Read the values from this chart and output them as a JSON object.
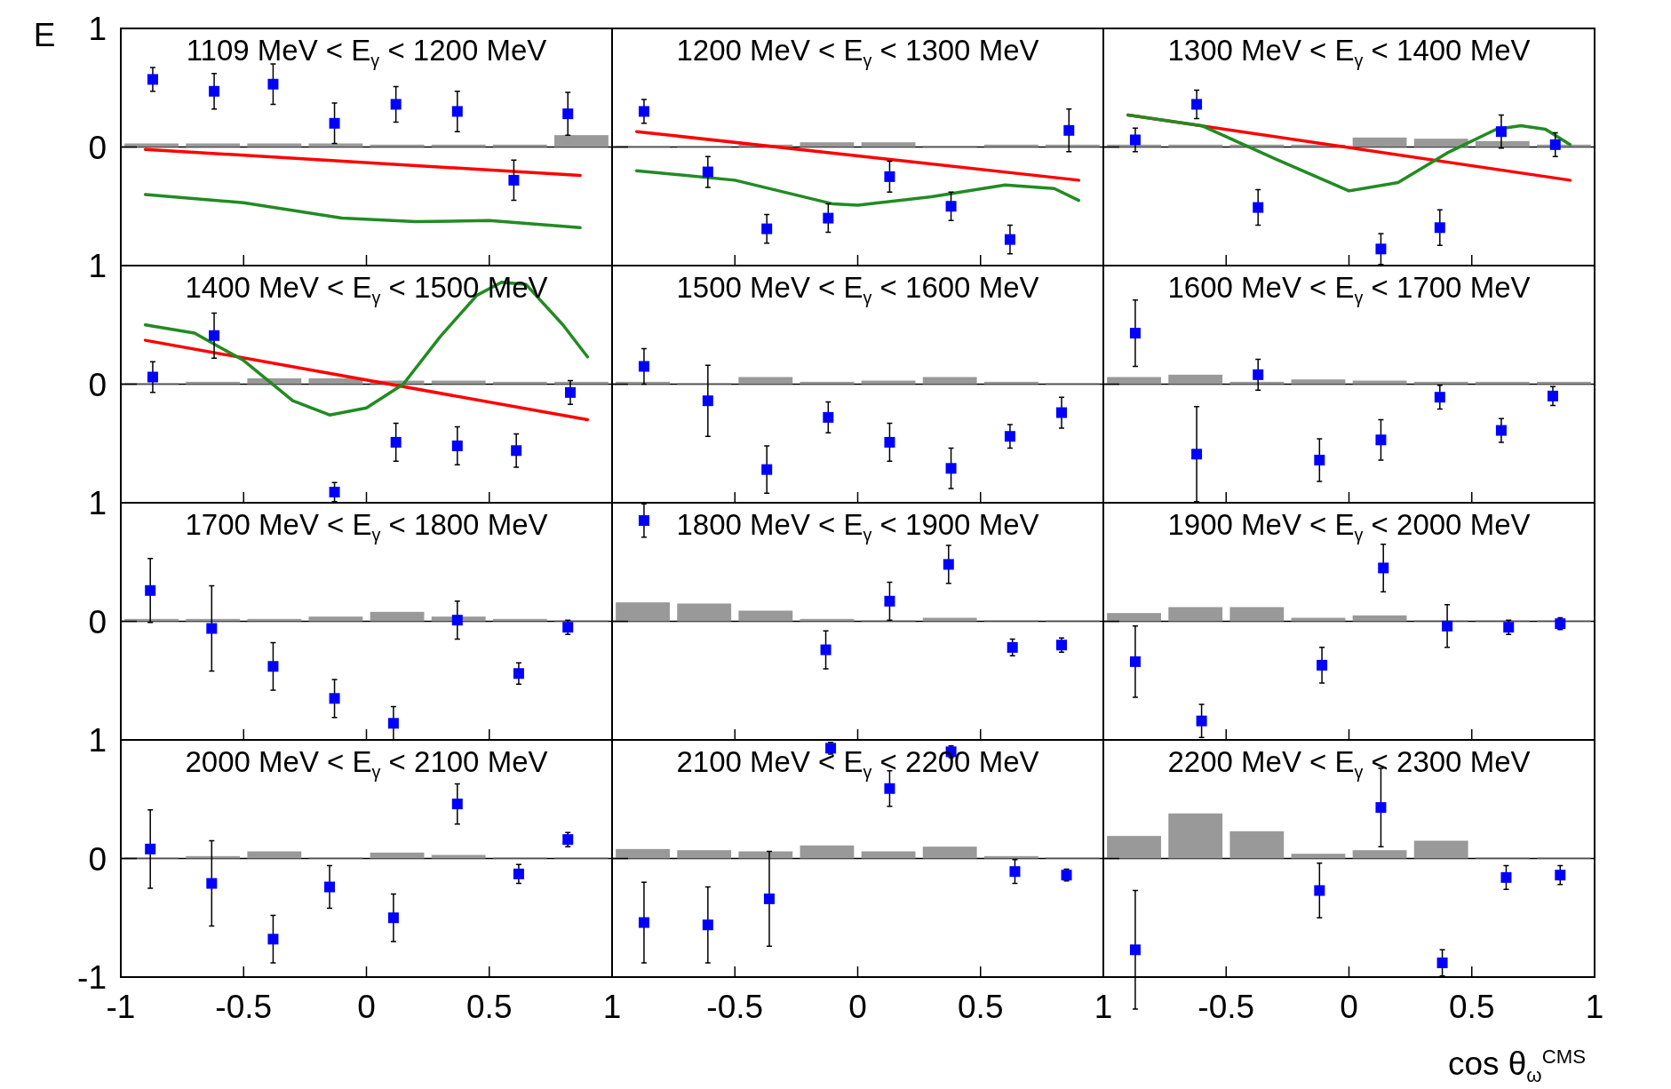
{
  "chart_data": [
    {
      "type": "scatter",
      "title": "1109 MeV < E$_{γ}$ < 1200 MeV",
      "ylabel": "E",
      "xlim": [
        -1,
        1
      ],
      "xticks": [
        -0.5,
        0,
        0.5
      ],
      "ylim": [
        -1,
        1
      ],
      "yticks": [
        0,
        1
      ],
      "tick_labels": "y",
      "ref_lines": [
        {
          "axis": "y",
          "value": 0,
          "color": "#000000"
        }
      ],
      "series": [
        {
          "type": "bar",
          "color": "#999999",
          "x": [
            -0.875,
            -0.625,
            -0.375,
            -0.125,
            0.125,
            0.375,
            0.625,
            0.875
          ],
          "values": [
            0.03,
            0.03,
            0.03,
            0.03,
            0.02,
            0.02,
            0.02,
            0.1
          ]
        },
        {
          "type": "line",
          "color": "#ff0000",
          "x": [
            -0.9,
            0.87
          ],
          "values": [
            -0.02,
            -0.24
          ]
        },
        {
          "type": "line",
          "color": "#228b22",
          "x": [
            -0.9,
            -0.5,
            -0.1,
            0.2,
            0.5,
            0.87
          ],
          "values": [
            -0.4,
            -0.47,
            -0.6,
            -0.63,
            -0.62,
            -0.68
          ]
        },
        {
          "type": "scatter",
          "color": "#0000ff",
          "marker": "square",
          "x": [
            -0.87,
            -0.62,
            -0.38,
            -0.13,
            0.12,
            0.37,
            0.6,
            0.82
          ],
          "values": [
            0.57,
            0.47,
            0.53,
            0.2,
            0.36,
            0.3,
            -0.28,
            0.28
          ],
          "errors": [
            0.1,
            0.15,
            0.17,
            0.17,
            0.15,
            0.17,
            0.17,
            0.18
          ]
        }
      ]
    },
    {
      "type": "scatter",
      "title": "1200 MeV < E$_{γ}$ < 1300 MeV",
      "xlim": [
        -1,
        1
      ],
      "xticks": [
        -0.5,
        0,
        0.5
      ],
      "ylim": [
        -1,
        1
      ],
      "yticks": [
        0
      ],
      "tick_labels": false,
      "ref_lines": [
        {
          "axis": "y",
          "value": 0,
          "color": "#000000"
        }
      ],
      "series": [
        {
          "type": "bar",
          "color": "#999999",
          "x": [
            -0.875,
            -0.625,
            -0.375,
            -0.125,
            0.125,
            0.375,
            0.625,
            0.875
          ],
          "values": [
            0.01,
            0.01,
            0.02,
            0.04,
            0.04,
            0.01,
            0.02,
            0.02
          ]
        },
        {
          "type": "line",
          "color": "#ff0000",
          "x": [
            -0.9,
            0.9
          ],
          "values": [
            0.13,
            -0.28
          ]
        },
        {
          "type": "line",
          "color": "#228b22",
          "x": [
            -0.9,
            -0.5,
            -0.1,
            0,
            0.3,
            0.6,
            0.8,
            0.9
          ],
          "values": [
            -0.2,
            -0.28,
            -0.48,
            -0.49,
            -0.42,
            -0.32,
            -0.35,
            -0.45
          ]
        },
        {
          "type": "scatter",
          "color": "#0000ff",
          "marker": "square",
          "x": [
            -0.87,
            -0.61,
            -0.37,
            -0.12,
            0.13,
            0.38,
            0.62,
            0.86
          ],
          "values": [
            0.3,
            -0.21,
            -0.69,
            -0.6,
            -0.25,
            -0.5,
            -0.78,
            0.14
          ],
          "errors": [
            0.1,
            0.13,
            0.12,
            0.12,
            0.13,
            0.12,
            0.12,
            0.18
          ]
        }
      ]
    },
    {
      "type": "scatter",
      "title": "1300 MeV < E$_{γ}$ < 1400 MeV",
      "xlim": [
        -1,
        1
      ],
      "xticks": [
        -0.5,
        0,
        0.5
      ],
      "ylim": [
        -1,
        1
      ],
      "yticks": [
        0
      ],
      "tick_labels": false,
      "ref_lines": [
        {
          "axis": "y",
          "value": 0,
          "color": "#000000"
        }
      ],
      "series": [
        {
          "type": "bar",
          "color": "#999999",
          "x": [
            -0.875,
            -0.625,
            -0.375,
            -0.125,
            0.125,
            0.375,
            0.625,
            0.875
          ],
          "values": [
            0.02,
            0.02,
            0.02,
            0.02,
            0.08,
            0.07,
            0.05,
            0.02
          ]
        },
        {
          "type": "line",
          "color": "#ff0000",
          "x": [
            -0.9,
            0.9
          ],
          "values": [
            0.27,
            -0.28
          ]
        },
        {
          "type": "line",
          "color": "#228b22",
          "x": [
            -0.9,
            -0.6,
            -0.3,
            0,
            0.2,
            0.4,
            0.6,
            0.7,
            0.8,
            0.9
          ],
          "values": [
            0.27,
            0.18,
            -0.1,
            -0.37,
            -0.3,
            -0.05,
            0.15,
            0.18,
            0.15,
            0.02
          ]
        },
        {
          "type": "scatter",
          "color": "#0000ff",
          "marker": "square",
          "x": [
            -0.87,
            -0.62,
            -0.37,
            0.13,
            0.37,
            0.62,
            0.84
          ],
          "values": [
            0.06,
            0.36,
            -0.51,
            -0.86,
            -0.68,
            0.13,
            0.02
          ],
          "errors": [
            0.1,
            0.12,
            0.15,
            0.13,
            0.15,
            0.14,
            0.1
          ]
        }
      ]
    },
    {
      "type": "scatter",
      "title": "1400 MeV < E$_{γ}$ < 1500 MeV",
      "xlim": [
        -1,
        1
      ],
      "xticks": [
        -0.5,
        0,
        0.5
      ],
      "ylim": [
        -1,
        1
      ],
      "yticks": [
        0,
        1
      ],
      "tick_labels": "y",
      "ref_lines": [
        {
          "axis": "y",
          "value": 0,
          "color": "#000000"
        }
      ],
      "series": [
        {
          "type": "bar",
          "color": "#999999",
          "x": [
            -0.875,
            -0.625,
            -0.375,
            -0.125,
            0.125,
            0.375,
            0.625,
            0.875
          ],
          "values": [
            0.01,
            0.02,
            0.05,
            0.05,
            0.03,
            0.03,
            0.02,
            0.02
          ]
        },
        {
          "type": "line",
          "color": "#ff0000",
          "x": [
            -0.9,
            0.9
          ],
          "values": [
            0.37,
            -0.3
          ]
        },
        {
          "type": "line",
          "color": "#228b22",
          "x": [
            -0.9,
            -0.7,
            -0.5,
            -0.3,
            -0.15,
            0,
            0.15,
            0.3,
            0.45,
            0.55,
            0.65,
            0.8,
            0.9
          ],
          "values": [
            0.5,
            0.43,
            0.2,
            -0.14,
            -0.26,
            -0.2,
            0,
            0.4,
            0.75,
            0.86,
            0.84,
            0.5,
            0.23
          ]
        },
        {
          "type": "scatter",
          "color": "#0000ff",
          "marker": "square",
          "x": [
            -0.87,
            -0.62,
            -0.13,
            0.12,
            0.37,
            0.61,
            0.83
          ],
          "values": [
            0.06,
            0.41,
            -0.91,
            -0.49,
            -0.52,
            -0.56,
            -0.07
          ],
          "errors": [
            0.13,
            0.19,
            0.08,
            0.16,
            0.16,
            0.14,
            0.1
          ]
        }
      ]
    },
    {
      "type": "scatter",
      "title": "1500 MeV < E$_{γ}$ < 1600 MeV",
      "xlim": [
        -1,
        1
      ],
      "xticks": [
        -0.5,
        0,
        0.5
      ],
      "ylim": [
        -1,
        1
      ],
      "yticks": [
        0
      ],
      "tick_labels": false,
      "ref_lines": [
        {
          "axis": "y",
          "value": 0,
          "color": "#000000"
        }
      ],
      "series": [
        {
          "type": "bar",
          "color": "#999999",
          "x": [
            -0.875,
            -0.625,
            -0.375,
            -0.125,
            0.125,
            0.375,
            0.625,
            0.875
          ],
          "values": [
            0.02,
            0.01,
            0.06,
            0.02,
            0.03,
            0.06,
            0.02,
            0.01
          ]
        },
        {
          "type": "scatter",
          "color": "#0000ff",
          "marker": "square",
          "x": [
            -0.87,
            -0.61,
            -0.37,
            -0.12,
            0.13,
            0.38,
            0.62,
            0.83
          ],
          "values": [
            0.15,
            -0.14,
            -0.72,
            -0.28,
            -0.49,
            -0.71,
            -0.44,
            -0.24
          ],
          "errors": [
            0.15,
            0.3,
            0.2,
            0.13,
            0.16,
            0.17,
            0.1,
            0.13
          ]
        }
      ]
    },
    {
      "type": "scatter",
      "title": "1600 MeV < E$_{γ}$ < 1700 MeV",
      "xlim": [
        -1,
        1
      ],
      "xticks": [
        -0.5,
        0,
        0.5
      ],
      "ylim": [
        -1,
        1
      ],
      "yticks": [
        0
      ],
      "tick_labels": false,
      "ref_lines": [
        {
          "axis": "y",
          "value": 0,
          "color": "#000000"
        }
      ],
      "series": [
        {
          "type": "bar",
          "color": "#999999",
          "x": [
            -0.875,
            -0.625,
            -0.375,
            -0.125,
            0.125,
            0.375,
            0.625,
            0.875
          ],
          "values": [
            0.06,
            0.08,
            0.02,
            0.04,
            0.03,
            0.02,
            0.02,
            0.02
          ]
        },
        {
          "type": "scatter",
          "color": "#0000ff",
          "marker": "square",
          "x": [
            -0.87,
            -0.62,
            -0.37,
            -0.12,
            0.13,
            0.37,
            0.62,
            0.83
          ],
          "values": [
            0.43,
            -0.59,
            0.08,
            -0.64,
            -0.47,
            -0.11,
            -0.39,
            -0.1
          ],
          "errors": [
            0.28,
            0.4,
            0.13,
            0.18,
            0.17,
            0.1,
            0.1,
            0.08
          ]
        }
      ]
    },
    {
      "type": "scatter",
      "title": "1700 MeV < E$_{γ}$ < 1800 MeV",
      "xlim": [
        -1,
        1
      ],
      "xticks": [
        -0.5,
        0,
        0.5
      ],
      "ylim": [
        -1,
        1
      ],
      "yticks": [
        0,
        1
      ],
      "tick_labels": "y",
      "ref_lines": [
        {
          "axis": "y",
          "value": 0,
          "color": "#000000"
        }
      ],
      "series": [
        {
          "type": "bar",
          "color": "#999999",
          "x": [
            -0.875,
            -0.625,
            -0.375,
            -0.125,
            0.125,
            0.375,
            0.625,
            0.875
          ],
          "values": [
            0.02,
            0.02,
            0.02,
            0.04,
            0.08,
            0.04,
            0.02,
            0.01
          ]
        },
        {
          "type": "scatter",
          "color": "#0000ff",
          "marker": "square",
          "x": [
            -0.88,
            -0.63,
            -0.38,
            -0.13,
            0.11,
            0.37,
            0.62,
            0.82
          ],
          "values": [
            0.26,
            -0.06,
            -0.38,
            -0.65,
            -0.86,
            0.01,
            -0.44,
            -0.05
          ],
          "errors": [
            0.27,
            0.36,
            0.2,
            0.16,
            0.14,
            0.16,
            0.09,
            0.06
          ]
        }
      ]
    },
    {
      "type": "scatter",
      "title": "1800 MeV < E$_{γ}$ < 1900 MeV",
      "xlim": [
        -1,
        1
      ],
      "xticks": [
        -0.5,
        0,
        0.5
      ],
      "ylim": [
        -1,
        1
      ],
      "yticks": [
        0
      ],
      "tick_labels": false,
      "ref_lines": [
        {
          "axis": "y",
          "value": 0,
          "color": "#000000"
        }
      ],
      "series": [
        {
          "type": "bar",
          "color": "#999999",
          "x": [
            -0.875,
            -0.625,
            -0.375,
            -0.125,
            0.125,
            0.375,
            0.625,
            0.875
          ],
          "values": [
            0.16,
            0.15,
            0.09,
            0.02,
            0.01,
            0.03,
            0.01,
            0.01
          ]
        },
        {
          "type": "scatter",
          "color": "#0000ff",
          "marker": "square",
          "x": [
            -0.87,
            -0.13,
            0.13,
            0.37,
            0.63,
            0.83
          ],
          "values": [
            0.85,
            -0.24,
            0.17,
            0.48,
            -0.22,
            -0.2
          ],
          "errors": [
            0.14,
            0.16,
            0.16,
            0.16,
            0.07,
            0.06
          ]
        }
      ]
    },
    {
      "type": "scatter",
      "title": "1900 MeV < E$_{γ}$ < 2000 MeV",
      "xlim": [
        -1,
        1
      ],
      "xticks": [
        -0.5,
        0,
        0.5
      ],
      "ylim": [
        -1,
        1
      ],
      "yticks": [
        0
      ],
      "tick_labels": false,
      "ref_lines": [
        {
          "axis": "y",
          "value": 0,
          "color": "#000000"
        }
      ],
      "series": [
        {
          "type": "bar",
          "color": "#999999",
          "x": [
            -0.875,
            -0.625,
            -0.375,
            -0.125,
            0.125,
            0.375,
            0.625,
            0.875
          ],
          "values": [
            0.07,
            0.12,
            0.12,
            0.03,
            0.05,
            0.01,
            0.01,
            0.01
          ]
        },
        {
          "type": "scatter",
          "color": "#0000ff",
          "marker": "square",
          "x": [
            -0.87,
            -0.6,
            -0.11,
            0.14,
            0.4,
            0.65,
            0.86
          ],
          "values": [
            -0.34,
            -0.84,
            -0.37,
            0.45,
            -0.04,
            -0.05,
            -0.02
          ],
          "errors": [
            0.3,
            0.14,
            0.15,
            0.2,
            0.18,
            0.06,
            0.05
          ]
        }
      ]
    },
    {
      "type": "scatter",
      "title": "2000 MeV < E$_{γ}$ < 2100 MeV",
      "xlim": [
        -1,
        1
      ],
      "xticks": [
        -1,
        -0.5,
        0,
        0.5,
        1
      ],
      "ylim": [
        -1,
        1
      ],
      "yticks": [
        -1,
        0,
        1
      ],
      "ref_lines": [
        {
          "axis": "y",
          "value": 0,
          "color": "#000000"
        }
      ],
      "series": [
        {
          "type": "bar",
          "color": "#999999",
          "x": [
            -0.875,
            -0.625,
            -0.375,
            -0.125,
            0.125,
            0.375,
            0.625,
            0.875
          ],
          "values": [
            0.01,
            0.02,
            0.06,
            0.01,
            0.05,
            0.03,
            0.01,
            0.01
          ]
        },
        {
          "type": "scatter",
          "color": "#0000ff",
          "marker": "square",
          "x": [
            -0.88,
            -0.63,
            -0.38,
            -0.15,
            0.11,
            0.37,
            0.62,
            0.82
          ],
          "values": [
            0.08,
            -0.21,
            -0.68,
            -0.24,
            -0.5,
            0.46,
            -0.13,
            0.16
          ],
          "errors": [
            0.33,
            0.36,
            0.2,
            0.18,
            0.2,
            0.17,
            0.08,
            0.06
          ]
        }
      ]
    },
    {
      "type": "scatter",
      "title": "2100 MeV < E$_{γ}$ < 2200 MeV",
      "xlim": [
        -1,
        1
      ],
      "xticks": [
        -0.5,
        0,
        0.5,
        1
      ],
      "ylim": [
        -1,
        1
      ],
      "yticks": [
        0
      ],
      "tick_labels": "x",
      "ref_lines": [
        {
          "axis": "y",
          "value": 0,
          "color": "#000000"
        }
      ],
      "series": [
        {
          "type": "bar",
          "color": "#999999",
          "x": [
            -0.875,
            -0.625,
            -0.375,
            -0.125,
            0.125,
            0.375,
            0.625,
            0.875
          ],
          "values": [
            0.08,
            0.07,
            0.06,
            0.11,
            0.06,
            0.1,
            0.02,
            0.01
          ]
        },
        {
          "type": "scatter",
          "color": "#0000ff",
          "marker": "square",
          "x": [
            -0.87,
            -0.61,
            -0.36,
            -0.11,
            0.13,
            0.38,
            0.64,
            0.85
          ],
          "values": [
            -0.54,
            -0.56,
            -0.34,
            0.93,
            0.59,
            0.9,
            -0.11,
            -0.14
          ],
          "errors": [
            0.34,
            0.32,
            0.4,
            0.05,
            0.15,
            0.05,
            0.1,
            0.05
          ]
        }
      ]
    },
    {
      "type": "scatter",
      "title": "2200 MeV < E$_{γ}$ < 2300 MeV",
      "xlabel": "cos θ$_{ω}$$^{CMS}$",
      "xlim": [
        -1,
        1
      ],
      "xticks": [
        -0.5,
        0,
        0.5,
        1
      ],
      "ylim": [
        -1,
        1
      ],
      "yticks": [
        0
      ],
      "tick_labels": "x",
      "ref_lines": [
        {
          "axis": "y",
          "value": 0,
          "color": "#000000"
        }
      ],
      "series": [
        {
          "type": "bar",
          "color": "#999999",
          "x": [
            -0.875,
            -0.625,
            -0.375,
            -0.125,
            0.125,
            0.375,
            0.625,
            0.875
          ],
          "values": [
            0.19,
            0.38,
            0.23,
            0.04,
            0.07,
            0.15,
            0.01,
            0.01
          ]
        },
        {
          "type": "scatter",
          "color": "#0000ff",
          "marker": "square",
          "x": [
            -0.87,
            -0.12,
            0.13,
            0.38,
            0.64,
            0.86
          ],
          "values": [
            -0.77,
            -0.27,
            0.43,
            -0.88,
            -0.16,
            -0.14
          ],
          "errors": [
            0.5,
            0.23,
            0.33,
            0.11,
            0.1,
            0.08
          ]
        }
      ]
    }
  ]
}
